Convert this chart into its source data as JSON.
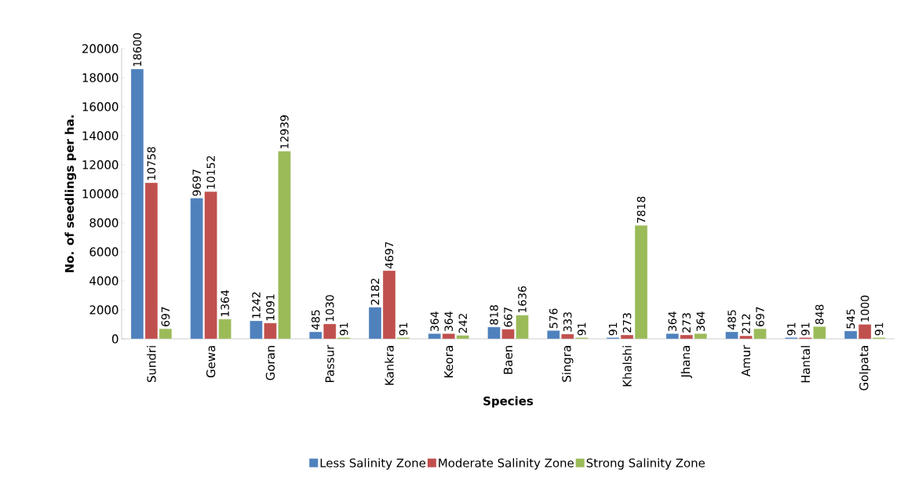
{
  "chart_data": {
    "type": "bar",
    "categories": [
      "Sundri",
      "Gewa",
      "Goran",
      "Passur",
      "Kankra",
      "Keora",
      "Baen",
      "Singra",
      "Khalshi",
      "Jhana",
      "Amur",
      "Hantal",
      "Golpata"
    ],
    "series": [
      {
        "name": "Less Salinity Zone",
        "color": "#4f81bd",
        "values": [
          18600,
          9697,
          1242,
          485,
          2182,
          364,
          818,
          576,
          91,
          364,
          485,
          91,
          545
        ]
      },
      {
        "name": "Moderate Salinity Zone",
        "color": "#c0504d",
        "values": [
          10758,
          10152,
          1091,
          1030,
          4697,
          364,
          667,
          333,
          273,
          273,
          212,
          91,
          1000
        ]
      },
      {
        "name": "Strong Salinity Zone",
        "color": "#9bbb59",
        "values": [
          697,
          1364,
          12939,
          91,
          91,
          242,
          1636,
          91,
          7818,
          364,
          697,
          848,
          91
        ]
      }
    ],
    "xlabel": "Species",
    "ylabel": "No. of seedlings per ha.",
    "ylim": [
      0,
      20000
    ],
    "yticks": [
      0,
      2000,
      4000,
      6000,
      8000,
      10000,
      12000,
      14000,
      16000,
      18000,
      20000
    ],
    "data_labels": true,
    "legend": "bottom",
    "grid": false
  }
}
